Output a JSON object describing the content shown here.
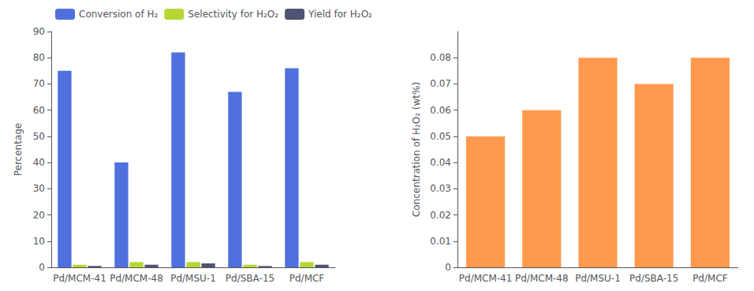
{
  "chart_data": [
    {
      "type": "bar",
      "categories": [
        "Pd/MCM-41",
        "Pd/MCM-48",
        "Pd/MSU-1",
        "Pd/SBA-15",
        "Pd/MCF"
      ],
      "series": [
        {
          "name": "Conversion of H₂",
          "values": [
            75,
            40,
            82,
            67,
            76
          ]
        },
        {
          "name": "Selectivity for H₂O₂",
          "values": [
            1.0,
            2.0,
            2.0,
            1.0,
            2.0
          ]
        },
        {
          "name": "Yield for H₂O₂",
          "values": [
            0.5,
            1.0,
            1.5,
            0.5,
            1.0
          ]
        }
      ],
      "ylabel": "Percentage",
      "ylim": [
        0,
        90
      ],
      "yticks": [
        0,
        10,
        20,
        30,
        40,
        50,
        60,
        70,
        80,
        90
      ],
      "grid": false,
      "legend": "upper left"
    },
    {
      "type": "bar",
      "categories": [
        "Pd/MCM-41",
        "Pd/MCM-48",
        "Pd/MSU-1",
        "Pd/SBA-15",
        "Pd/MCF"
      ],
      "values": [
        0.05,
        0.06,
        0.08,
        0.07,
        0.08
      ],
      "ylabel": "Concentration of H₂O₂ (wt%)",
      "ylim": [
        0,
        0.09
      ],
      "yticks": [
        0,
        0.01,
        0.02,
        0.03,
        0.04,
        0.05,
        0.06,
        0.07,
        0.08
      ],
      "grid": false
    }
  ]
}
